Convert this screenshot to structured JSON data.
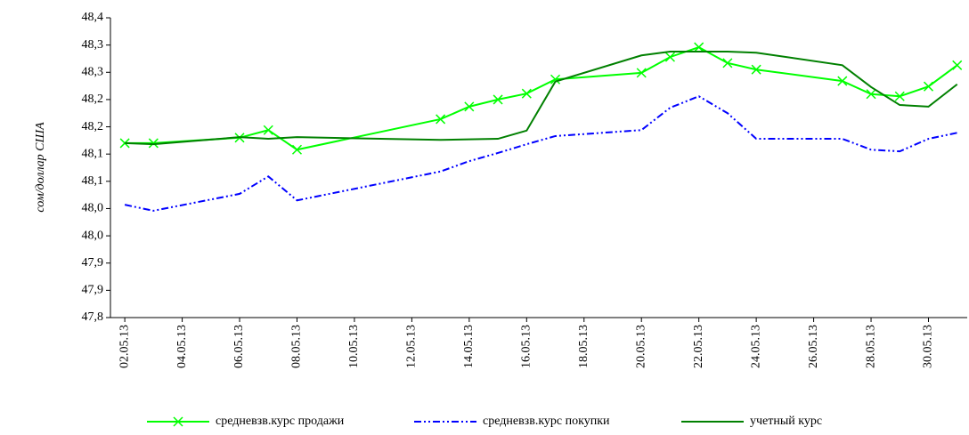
{
  "chart_data": {
    "type": "line",
    "y_label": "сом/доллар США",
    "x": [
      "02.05.13",
      "03.05.13",
      "06.05.13",
      "07.05.13",
      "08.05.13",
      "13.05.13",
      "14.05.13",
      "15.05.13",
      "16.05.13",
      "17.05.13",
      "20.05.13",
      "21.05.13",
      "22.05.13",
      "23.05.13",
      "24.05.13",
      "27.05.13",
      "28.05.13",
      "29.05.13",
      "30.05.13",
      "31.05.13"
    ],
    "xticks": [
      "02.05.13",
      "04.05.13",
      "06.05.13",
      "08.05.13",
      "10.05.13",
      "12.05.13",
      "14.05.13",
      "16.05.13",
      "18.05.13",
      "20.05.13",
      "22.05.13",
      "24.05.13",
      "26.05.13",
      "28.05.13",
      "30.05.13"
    ],
    "series": [
      {
        "name": "средневзв.курс продажи",
        "color": "#00ff00",
        "style": "marker-x",
        "values": [
          48.12,
          48.12,
          48.13,
          48.144,
          48.108,
          48.164,
          48.187,
          48.2,
          48.211,
          48.237,
          48.249,
          48.278,
          48.296,
          48.267,
          48.255,
          48.234,
          48.21,
          48.206,
          48.224,
          48.263
        ]
      },
      {
        "name": "средневзв.курс покупки",
        "color": "#0000ff",
        "style": "dash-dot",
        "values": [
          48.007,
          47.996,
          48.027,
          48.059,
          48.015,
          48.068,
          48.087,
          48.102,
          48.118,
          48.133,
          48.144,
          48.185,
          48.206,
          48.175,
          48.128,
          48.128,
          48.108,
          48.105,
          48.128,
          48.139
        ]
      },
      {
        "name": "учетный курс",
        "color": "#008000",
        "style": "solid",
        "values": [
          48.12,
          48.118,
          48.131,
          48.128,
          48.131,
          48.126,
          48.127,
          48.128,
          48.143,
          48.233,
          48.281,
          48.288,
          48.288,
          48.288,
          48.286,
          48.263,
          48.223,
          48.19,
          48.187,
          48.228
        ]
      }
    ],
    "ylim": [
      47.8,
      48.35
    ],
    "yticks": [
      {
        "value": 47.8,
        "label": "47,8"
      },
      {
        "value": 47.85,
        "label": "47,9"
      },
      {
        "value": 47.9,
        "label": "47,9"
      },
      {
        "value": 47.95,
        "label": "48,0"
      },
      {
        "value": 48.0,
        "label": "48,0"
      },
      {
        "value": 48.05,
        "label": "48,1"
      },
      {
        "value": 48.1,
        "label": "48,1"
      },
      {
        "value": 48.15,
        "label": "48,2"
      },
      {
        "value": 48.2,
        "label": "48,2"
      },
      {
        "value": 48.25,
        "label": "48,3"
      },
      {
        "value": 48.3,
        "label": "48,3"
      },
      {
        "value": 48.35,
        "label": "48,4"
      }
    ],
    "grid": false,
    "legend": "bottom"
  }
}
